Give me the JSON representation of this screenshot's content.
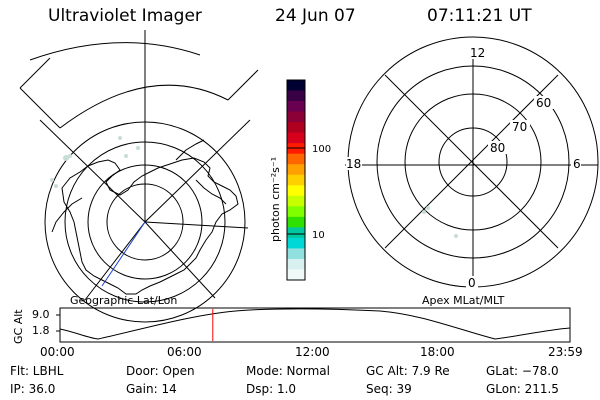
{
  "header": {
    "title": "Ultraviolet Imager",
    "date": "24 Jun 07",
    "time": "07:11:21 UT"
  },
  "left_panel": {
    "caption": "Geographic Lat/Lon",
    "coastline_color": "#000000",
    "track_color": "#1f3fd0",
    "aurora_color": "#c8dcd8"
  },
  "colorbar": {
    "label": "photon cm⁻²s⁻¹",
    "tick_labels": [
      "100",
      "10"
    ],
    "colors": [
      "#000033",
      "#3a0045",
      "#6a0050",
      "#8b0036",
      "#b00020",
      "#d6001c",
      "#ff1a00",
      "#ff6600",
      "#ffa000",
      "#ffd000",
      "#ffff00",
      "#c8ff00",
      "#80ff00",
      "#30e000",
      "#00c8a0",
      "#00d8d8",
      "#90e0e0",
      "#d8f0f0",
      "#f0f8f8"
    ]
  },
  "right_panel": {
    "caption": "Apex MLat/MLT",
    "mlt_labels": {
      "top": "12",
      "left": "18",
      "right": "6",
      "bottom": "0"
    },
    "mlat_labels": [
      "60",
      "70",
      "80"
    ]
  },
  "altitude_strip": {
    "axis_label": "GC Alt",
    "y_ticks": [
      "9.0",
      "1.8"
    ],
    "x_ticks": [
      "00:00",
      "06:00",
      "12:00",
      "18:00",
      "23:59"
    ],
    "current_time_hours": 7.19,
    "marker_color": "#ff0000"
  },
  "info": {
    "flt": "Flt: LBHL",
    "ip": "IP: 36.0",
    "door": "Door: Open",
    "gain": "Gain: 14",
    "mode": "Mode: Normal",
    "dsp": "Dsp:    1.0",
    "gc_alt": "GC Alt: 7.9 Re",
    "seq": "Seq: 39",
    "glat": "GLat: −78.0",
    "glon": "GLon: 211.5"
  }
}
